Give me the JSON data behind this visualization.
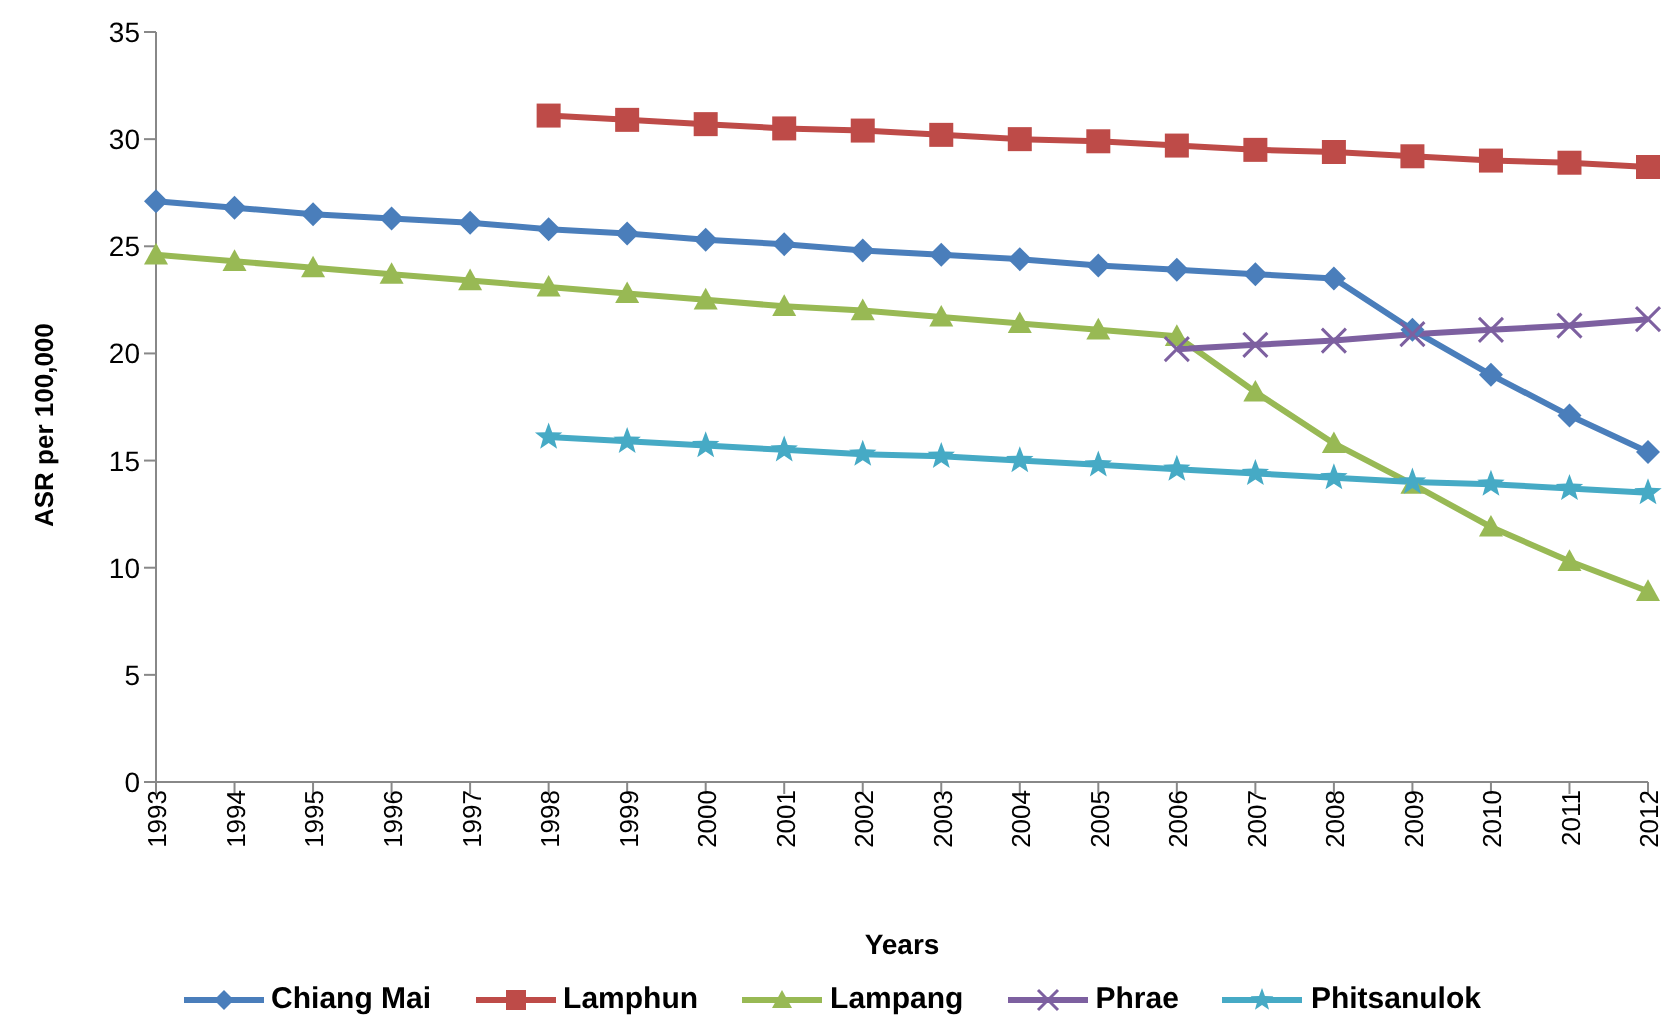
{
  "chart_data": {
    "type": "line",
    "xlabel": "Years",
    "ylabel": "ASR per 100,000",
    "categories": [
      "1993",
      "1994",
      "1995",
      "1996",
      "1997",
      "1998",
      "1999",
      "2000",
      "2001",
      "2002",
      "2003",
      "2004",
      "2005",
      "2006",
      "2007",
      "2008",
      "2009",
      "2010",
      "2011",
      "2012"
    ],
    "ylim": [
      0,
      35
    ],
    "yticks": [
      0,
      5,
      10,
      15,
      20,
      25,
      30,
      35
    ],
    "grid": false,
    "legend": "bottom",
    "series": [
      {
        "name": "Chiang Mai",
        "color": "#4a7ebb",
        "marker": "diamond",
        "values": [
          27.1,
          26.8,
          26.5,
          26.3,
          26.1,
          25.8,
          25.6,
          25.3,
          25.1,
          24.8,
          24.6,
          24.4,
          24.1,
          23.9,
          23.7,
          23.5,
          21.1,
          19.0,
          17.1,
          15.4
        ]
      },
      {
        "name": "Lamphun",
        "color": "#be4b48",
        "marker": "square",
        "values": [
          null,
          null,
          null,
          null,
          null,
          31.1,
          30.9,
          30.7,
          30.5,
          30.4,
          30.2,
          30.0,
          29.9,
          29.7,
          29.5,
          29.4,
          29.2,
          29.0,
          28.9,
          28.7
        ]
      },
      {
        "name": "Lampang",
        "color": "#98b954",
        "marker": "triangle",
        "values": [
          24.6,
          24.3,
          24.0,
          23.7,
          23.4,
          23.1,
          22.8,
          22.5,
          22.2,
          22.0,
          21.7,
          21.4,
          21.1,
          20.8,
          18.2,
          15.8,
          13.9,
          11.9,
          10.3,
          8.9
        ]
      },
      {
        "name": "Phrae",
        "color": "#7d60a0",
        "marker": "cross",
        "values": [
          null,
          null,
          null,
          null,
          null,
          null,
          null,
          null,
          null,
          null,
          null,
          null,
          null,
          20.2,
          20.4,
          20.6,
          20.9,
          21.1,
          21.3,
          21.6
        ]
      },
      {
        "name": "Phitsanulok",
        "color": "#46aac5",
        "marker": "star",
        "values": [
          null,
          null,
          null,
          null,
          null,
          16.1,
          15.9,
          15.7,
          15.5,
          15.3,
          15.2,
          15.0,
          14.8,
          14.6,
          14.4,
          14.2,
          14.0,
          13.9,
          13.7,
          13.5
        ]
      }
    ]
  }
}
